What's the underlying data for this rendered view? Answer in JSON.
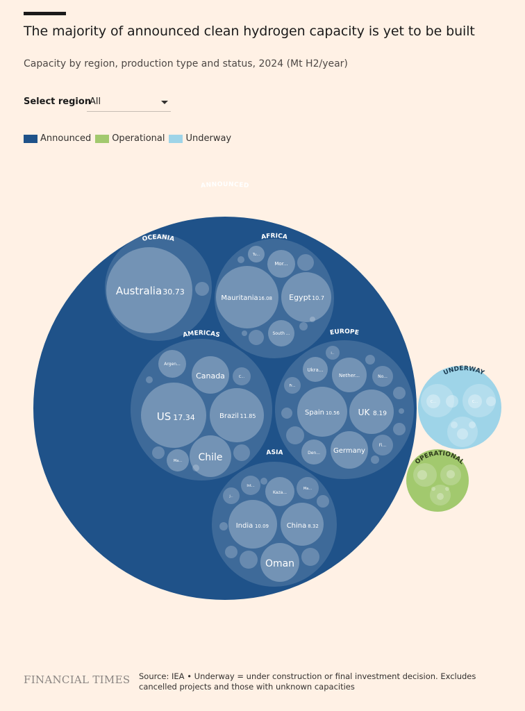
{
  "header": {
    "title": "The majority of announced clean hydrogen capacity is yet to be built",
    "subtitle": "Capacity by region, production type and status, 2024 (Mt H2/year)"
  },
  "controls": {
    "select_label": "Select region",
    "selected_region": "All"
  },
  "legend": [
    {
      "label": "Announced",
      "color": "#1f5289"
    },
    {
      "label": "Operational",
      "color": "#a2c96e"
    },
    {
      "label": "Underway",
      "color": "#9ed4e8"
    }
  ],
  "colors": {
    "announced": "#1f5289",
    "operational": "#a2c96e",
    "underway": "#9ed4e8",
    "background": "#fff1e5"
  },
  "chart_data": {
    "type": "packed-bubble",
    "units": "Mt H2/year",
    "groups": [
      {
        "status": "ANNOUNCED",
        "regions": [
          {
            "name": "OCEANIA",
            "countries": [
              {
                "label": "Australia",
                "value": "30.73"
              }
            ]
          },
          {
            "name": "AFRICA",
            "countries": [
              {
                "label": "Mauritania",
                "value": "16.08"
              },
              {
                "label": "Egypt",
                "value": "10.7"
              },
              {
                "label": "Mor...",
                "value": ""
              },
              {
                "label": "South ...",
                "value": ""
              },
              {
                "label": "Tu...",
                "value": ""
              }
            ]
          },
          {
            "name": "AMERICAS",
            "countries": [
              {
                "label": "US",
                "value": "17.34"
              },
              {
                "label": "Brazil",
                "value": "11.85"
              },
              {
                "label": "Chile",
                "value": ""
              },
              {
                "label": "Canada",
                "value": ""
              },
              {
                "label": "Argen...",
                "value": ""
              },
              {
                "label": "Ma...",
                "value": ""
              },
              {
                "label": "C...",
                "value": ""
              }
            ]
          },
          {
            "name": "EUROPE",
            "countries": [
              {
                "label": "Spain",
                "value": "10.56"
              },
              {
                "label": "UK",
                "value": "8.19"
              },
              {
                "label": "Germany",
                "value": ""
              },
              {
                "label": "Nether...",
                "value": ""
              },
              {
                "label": "Ukra...",
                "value": ""
              },
              {
                "label": "No...",
                "value": ""
              },
              {
                "label": "Den...",
                "value": ""
              },
              {
                "label": "Fi...",
                "value": ""
              },
              {
                "label": "Fr...",
                "value": ""
              },
              {
                "label": "I...",
                "value": ""
              }
            ]
          },
          {
            "name": "ASIA",
            "countries": [
              {
                "label": "India",
                "value": "10.09"
              },
              {
                "label": "China",
                "value": "8.32"
              },
              {
                "label": "Oman",
                "value": ""
              },
              {
                "label": "Kaza...",
                "value": ""
              },
              {
                "label": "Int...",
                "value": ""
              },
              {
                "label": "Ma...",
                "value": ""
              },
              {
                "label": "J...",
                "value": ""
              }
            ]
          }
        ]
      },
      {
        "status": "UNDERWAY",
        "regions": [],
        "small_labels": [
          "C...",
          "C..."
        ]
      },
      {
        "status": "OPERATIONAL",
        "regions": []
      }
    ]
  },
  "footer": {
    "logo": "FINANCIAL TIMES",
    "source": "Source: IEA • Underway = under construction or final investment decision. Excludes cancelled projects and those with unknown capacities"
  }
}
